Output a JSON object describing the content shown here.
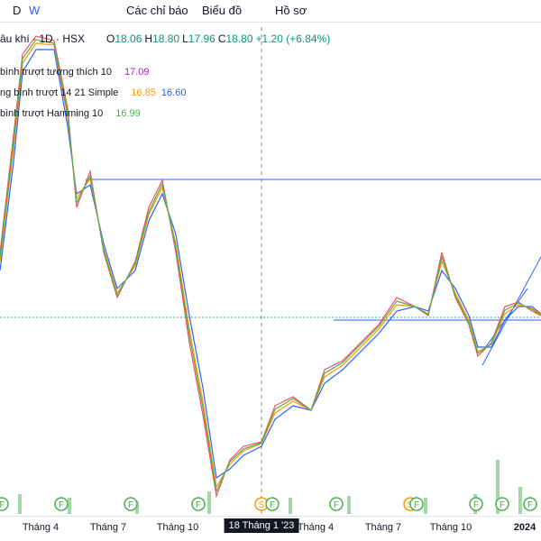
{
  "toolbar": {
    "items": [
      "D",
      "W",
      "Các chỉ báo",
      "Biểu đồ",
      "Hồ sơ"
    ]
  },
  "legend": {
    "symbol": "âu khí · 1D · HSX",
    "ohlc": [
      {
        "label": "O",
        "value": "18.06"
      },
      {
        "label": "H",
        "value": "18.80"
      },
      {
        "label": "L",
        "value": "17.96"
      },
      {
        "label": "C",
        "value": "18.80"
      }
    ],
    "change": "+1.20 (+6.84%)"
  },
  "indicators": [
    {
      "name": "bình trượt tương thích 10",
      "values": [
        "17.09"
      ]
    },
    {
      "name": "ng bình trượt 14 21 Simple",
      "values": [
        "16.85",
        "16.60"
      ]
    },
    {
      "name": "bình trượt Hamming 10",
      "values": [
        "16.99"
      ]
    }
  ],
  "x_axis": {
    "labels": [
      "Tháng 4",
      "Tháng 7",
      "Tháng 10",
      "18 Tháng 1 '23",
      "Tháng 4",
      "Tháng 7",
      "Tháng 10",
      "2024"
    ]
  },
  "events": [
    "F",
    "F",
    "F",
    "F",
    "S",
    "F",
    "F",
    "S",
    "F",
    "F",
    "F",
    "F"
  ]
}
